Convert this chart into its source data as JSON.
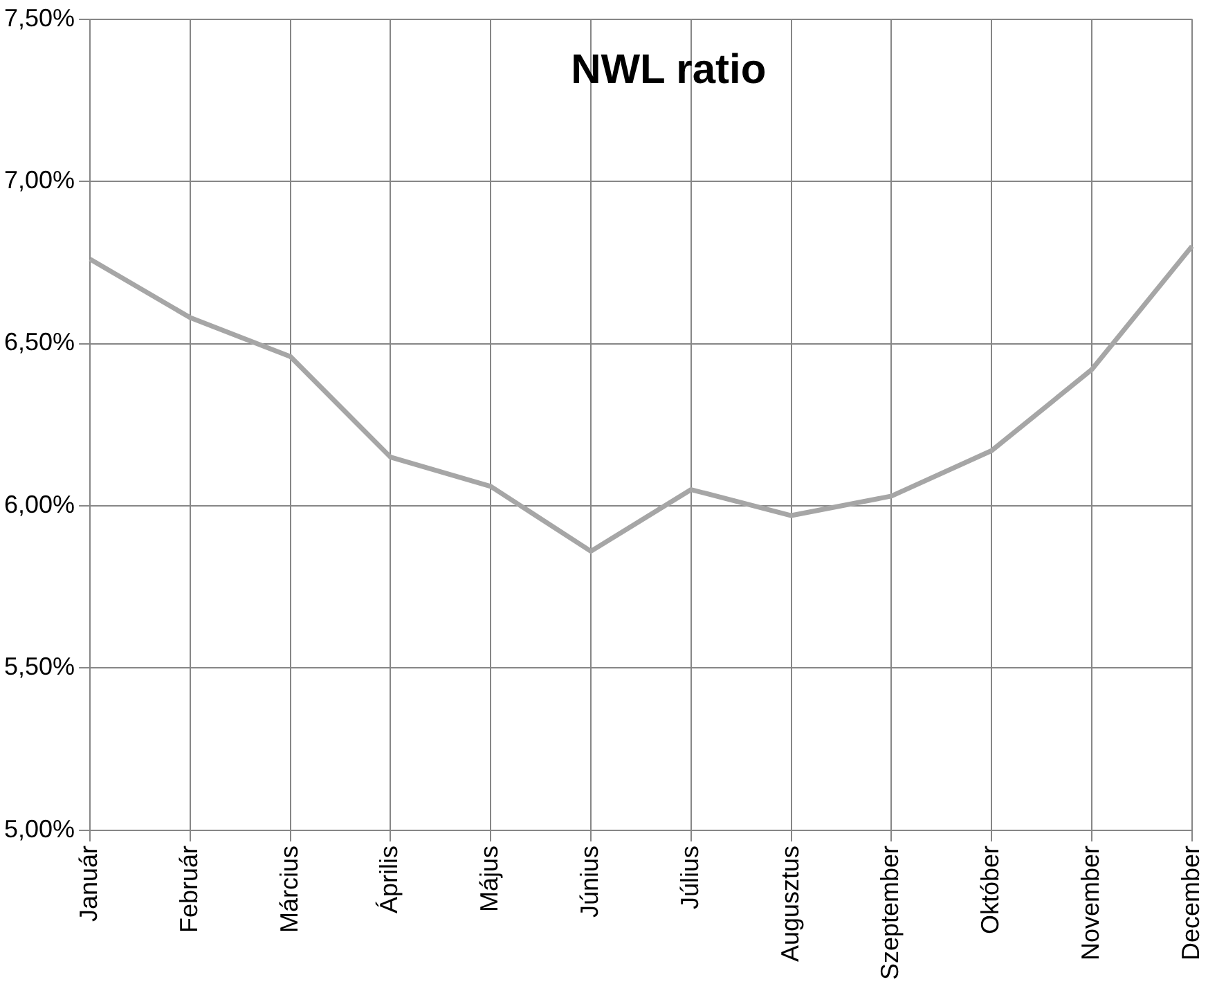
{
  "chart_data": {
    "type": "line",
    "title": "NWL ratio",
    "categories": [
      "Január",
      "Február",
      "Március",
      "Április",
      "Május",
      "Június",
      "Július",
      "Augusztus",
      "Szeptember",
      "Október",
      "November",
      "December"
    ],
    "series": [
      {
        "color": "#a6a6a6",
        "values": [
          6.76,
          6.58,
          6.46,
          6.15,
          6.06,
          5.86,
          6.05,
          5.97,
          6.03,
          6.17,
          6.42,
          6.8
        ]
      }
    ],
    "ylim": [
      5,
      7.5
    ],
    "yticks": [
      {
        "value": 5,
        "label": "5,00%"
      },
      {
        "value": 5.5,
        "label": "5,50%"
      },
      {
        "value": 6,
        "label": "6,00%"
      },
      {
        "value": 6.5,
        "label": "6,50%"
      },
      {
        "value": 7,
        "label": "7,00%"
      },
      {
        "value": 7.5,
        "label": "7,50%"
      }
    ],
    "grid": true,
    "legend": false,
    "marker": "none",
    "line_style": "solid"
  }
}
